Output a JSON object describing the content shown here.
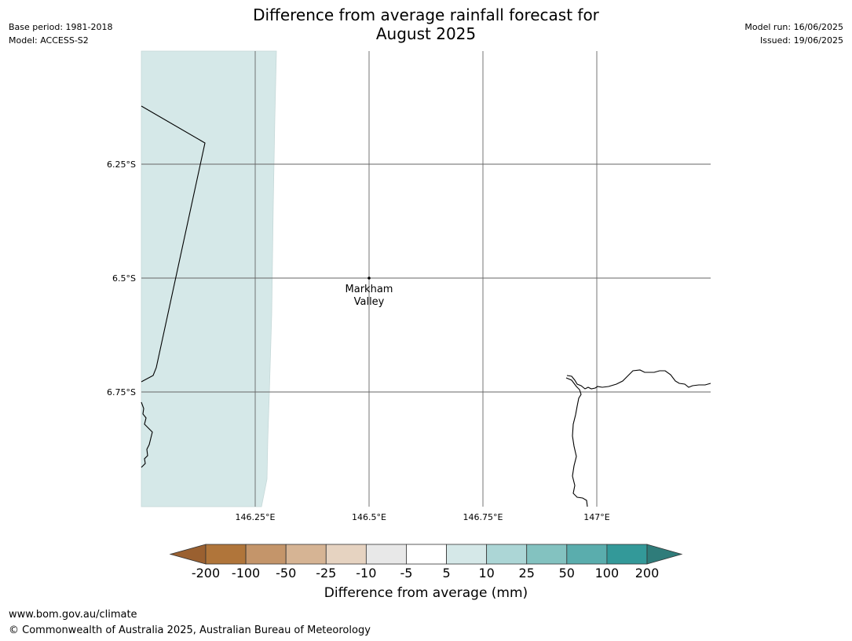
{
  "header": {
    "title_line1": "Difference from average rainfall forecast for",
    "title_line2": "August 2025",
    "base_period": "Base period: 1981-2018",
    "model": "Model: ACCESS-S2",
    "model_run": "Model run: 16/06/2025",
    "issued": "Issued: 19/06/2025"
  },
  "map": {
    "lat_labels": [
      "6.25°S",
      "6.5°S",
      "6.75°S"
    ],
    "lon_labels": [
      "146.25°E",
      "146.5°E",
      "146.75°E",
      "147°E"
    ],
    "place": {
      "name_line1": "Markham",
      "name_line2": "Valley"
    },
    "shaded_category": "5 to 10"
  },
  "colorbar": {
    "ticks": [
      "-200",
      "-100",
      "-50",
      "-25",
      "-10",
      "-5",
      "5",
      "10",
      "25",
      "50",
      "100",
      "200"
    ],
    "colors": [
      "#9a6030",
      "#b0753a",
      "#c4956a",
      "#d6b494",
      "#e6d3c1",
      "#e8e8e8",
      "#ffffff",
      "#d5e8e8",
      "#acd6d6",
      "#83c2c0",
      "#5aadad",
      "#339999",
      "#2f7c7a"
    ],
    "label": "Difference from average (mm)"
  },
  "footer": {
    "url": "www.bom.gov.au/climate",
    "copyright": "© Commonwealth of Australia 2025, Australian Bureau of Meteorology"
  }
}
